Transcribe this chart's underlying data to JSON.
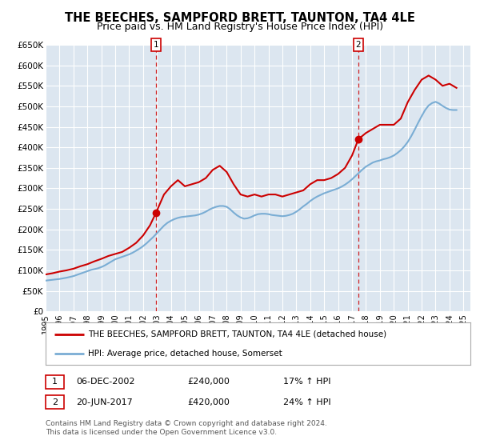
{
  "title": "THE BEECHES, SAMPFORD BRETT, TAUNTON, TA4 4LE",
  "subtitle": "Price paid vs. HM Land Registry's House Price Index (HPI)",
  "title_fontsize": 10.5,
  "subtitle_fontsize": 9,
  "ylim": [
    0,
    650000
  ],
  "yticks": [
    0,
    50000,
    100000,
    150000,
    200000,
    250000,
    300000,
    350000,
    400000,
    450000,
    500000,
    550000,
    600000,
    650000
  ],
  "ytick_labels": [
    "£0",
    "£50K",
    "£100K",
    "£150K",
    "£200K",
    "£250K",
    "£300K",
    "£350K",
    "£400K",
    "£450K",
    "£500K",
    "£550K",
    "£600K",
    "£650K"
  ],
  "xlim_start": 1995.0,
  "xlim_end": 2025.5,
  "background_color": "#ffffff",
  "plot_bg_color": "#dce6f0",
  "grid_color": "#ffffff",
  "property_line_color": "#cc0000",
  "hpi_line_color": "#7aadd4",
  "sale1_x": 2002.92,
  "sale1_y": 240000,
  "sale2_x": 2017.46,
  "sale2_y": 420000,
  "sale_marker_color": "#cc0000",
  "dashed_line_color": "#cc0000",
  "legend_label1": "THE BEECHES, SAMPFORD BRETT, TAUNTON, TA4 4LE (detached house)",
  "legend_label2": "HPI: Average price, detached house, Somerset",
  "table_row1": [
    "1",
    "06-DEC-2002",
    "£240,000",
    "17% ↑ HPI"
  ],
  "table_row2": [
    "2",
    "20-JUN-2017",
    "£420,000",
    "24% ↑ HPI"
  ],
  "footnote": "Contains HM Land Registry data © Crown copyright and database right 2024.\nThis data is licensed under the Open Government Licence v3.0.",
  "hpi_data_x": [
    1995.0,
    1995.25,
    1995.5,
    1995.75,
    1996.0,
    1996.25,
    1996.5,
    1996.75,
    1997.0,
    1997.25,
    1997.5,
    1997.75,
    1998.0,
    1998.25,
    1998.5,
    1998.75,
    1999.0,
    1999.25,
    1999.5,
    1999.75,
    2000.0,
    2000.25,
    2000.5,
    2000.75,
    2001.0,
    2001.25,
    2001.5,
    2001.75,
    2002.0,
    2002.25,
    2002.5,
    2002.75,
    2003.0,
    2003.25,
    2003.5,
    2003.75,
    2004.0,
    2004.25,
    2004.5,
    2004.75,
    2005.0,
    2005.25,
    2005.5,
    2005.75,
    2006.0,
    2006.25,
    2006.5,
    2006.75,
    2007.0,
    2007.25,
    2007.5,
    2007.75,
    2008.0,
    2008.25,
    2008.5,
    2008.75,
    2009.0,
    2009.25,
    2009.5,
    2009.75,
    2010.0,
    2010.25,
    2010.5,
    2010.75,
    2011.0,
    2011.25,
    2011.5,
    2011.75,
    2012.0,
    2012.25,
    2012.5,
    2012.75,
    2013.0,
    2013.25,
    2013.5,
    2013.75,
    2014.0,
    2014.25,
    2014.5,
    2014.75,
    2015.0,
    2015.25,
    2015.5,
    2015.75,
    2016.0,
    2016.25,
    2016.5,
    2016.75,
    2017.0,
    2017.25,
    2017.5,
    2017.75,
    2018.0,
    2018.25,
    2018.5,
    2018.75,
    2019.0,
    2019.25,
    2019.5,
    2019.75,
    2020.0,
    2020.25,
    2020.5,
    2020.75,
    2021.0,
    2021.25,
    2021.5,
    2021.75,
    2022.0,
    2022.25,
    2022.5,
    2022.75,
    2023.0,
    2023.25,
    2023.5,
    2023.75,
    2024.0,
    2024.25,
    2024.5
  ],
  "hpi_data_y": [
    75000,
    76000,
    77000,
    78000,
    79000,
    80500,
    82000,
    84000,
    86000,
    89000,
    92000,
    95000,
    98000,
    101000,
    103000,
    105000,
    108000,
    112000,
    117000,
    122000,
    127000,
    130000,
    133000,
    136000,
    139000,
    143000,
    148000,
    153000,
    159000,
    166000,
    174000,
    182000,
    191000,
    200000,
    209000,
    216000,
    221000,
    225000,
    228000,
    230000,
    231000,
    232000,
    233000,
    234000,
    236000,
    239000,
    243000,
    248000,
    252000,
    255000,
    257000,
    257000,
    255000,
    249000,
    241000,
    234000,
    229000,
    226000,
    227000,
    230000,
    234000,
    237000,
    238000,
    238000,
    237000,
    235000,
    234000,
    233000,
    232000,
    233000,
    235000,
    238000,
    243000,
    249000,
    256000,
    262000,
    269000,
    275000,
    280000,
    284000,
    288000,
    291000,
    294000,
    297000,
    300000,
    304000,
    309000,
    315000,
    322000,
    330000,
    338000,
    346000,
    353000,
    358000,
    363000,
    366000,
    368000,
    371000,
    373000,
    376000,
    380000,
    386000,
    393000,
    402000,
    413000,
    427000,
    443000,
    460000,
    476000,
    491000,
    502000,
    508000,
    511000,
    507000,
    501000,
    496000,
    492000,
    491000,
    491000
  ],
  "property_data_x": [
    1995.0,
    1995.5,
    1996.0,
    1996.5,
    1997.0,
    1997.5,
    1998.0,
    1998.5,
    1999.0,
    1999.5,
    2000.0,
    2000.5,
    2001.0,
    2001.5,
    2002.0,
    2002.5,
    2002.92,
    2003.5,
    2004.0,
    2004.5,
    2005.0,
    2005.5,
    2006.0,
    2006.5,
    2007.0,
    2007.5,
    2008.0,
    2008.5,
    2009.0,
    2009.5,
    2010.0,
    2010.5,
    2011.0,
    2011.5,
    2012.0,
    2012.5,
    2013.0,
    2013.5,
    2014.0,
    2014.5,
    2015.0,
    2015.5,
    2016.0,
    2016.5,
    2017.0,
    2017.46,
    2018.0,
    2018.5,
    2019.0,
    2019.5,
    2020.0,
    2020.5,
    2021.0,
    2021.5,
    2022.0,
    2022.5,
    2023.0,
    2023.5,
    2024.0,
    2024.5
  ],
  "property_data_y": [
    90000,
    93000,
    97000,
    100000,
    104000,
    110000,
    115000,
    122000,
    128000,
    135000,
    140000,
    145000,
    155000,
    167000,
    185000,
    210000,
    240000,
    285000,
    305000,
    320000,
    305000,
    310000,
    315000,
    325000,
    345000,
    355000,
    340000,
    310000,
    285000,
    280000,
    285000,
    280000,
    285000,
    285000,
    280000,
    285000,
    290000,
    295000,
    310000,
    320000,
    320000,
    325000,
    335000,
    350000,
    380000,
    420000,
    435000,
    445000,
    455000,
    455000,
    455000,
    470000,
    510000,
    540000,
    565000,
    575000,
    565000,
    550000,
    555000,
    545000
  ]
}
